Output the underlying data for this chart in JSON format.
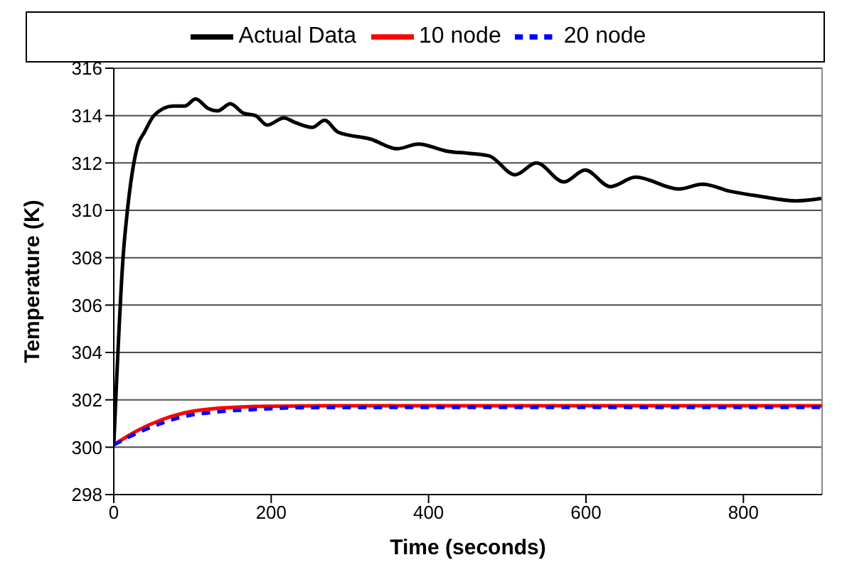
{
  "chart_data": {
    "type": "line",
    "xlabel": "Time (seconds)",
    "ylabel": "Temperature (K)",
    "xlim": [
      0,
      900
    ],
    "xticks": [
      0,
      200,
      400,
      600,
      800
    ],
    "ylim": [
      298,
      316
    ],
    "yticks": [
      298,
      300,
      302,
      304,
      306,
      308,
      310,
      312,
      314,
      316
    ],
    "grid": "y",
    "legend": "top",
    "marker": "none",
    "series": [
      {
        "name": "Actual Data",
        "color": "#000000",
        "line_style": "solid",
        "x": [
          0,
          12,
          18,
          30,
          39,
          51,
          75,
          90,
          104,
          120,
          132,
          148,
          165,
          180,
          195,
          216,
          231,
          252,
          268,
          285,
          327,
          360,
          387,
          423,
          453,
          477,
          510,
          537,
          572,
          599,
          631,
          663,
          718,
          748,
          784,
          820,
          868,
          899
        ],
        "values": [
          300.1,
          308.1,
          310.2,
          312.7,
          313.3,
          314.0,
          314.4,
          314.4,
          314.7,
          314.3,
          314.2,
          314.5,
          314.1,
          314.0,
          313.6,
          313.9,
          313.7,
          313.5,
          313.8,
          313.3,
          313.0,
          312.6,
          312.8,
          312.5,
          312.4,
          312.3,
          311.5,
          312.0,
          311.2,
          311.7,
          311.0,
          311.4,
          310.9,
          311.1,
          310.8,
          310.6,
          310.4,
          310.5
        ]
      },
      {
        "name": "10 node",
        "color": "#ff0000",
        "line_style": "solid",
        "x": [
          0,
          30,
          60,
          90,
          135,
          195,
          300,
          500,
          700,
          900
        ],
        "values": [
          300.1,
          300.7,
          301.15,
          301.45,
          301.65,
          301.73,
          301.75,
          301.75,
          301.75,
          301.75
        ]
      },
      {
        "name": "20 node",
        "color": "#0000ff",
        "line_style": "dashed",
        "x": [
          0,
          30,
          60,
          90,
          135,
          183,
          243,
          400,
          600,
          900
        ],
        "values": [
          300.1,
          300.6,
          301.0,
          301.3,
          301.5,
          301.6,
          301.67,
          301.68,
          301.68,
          301.68
        ]
      }
    ]
  }
}
